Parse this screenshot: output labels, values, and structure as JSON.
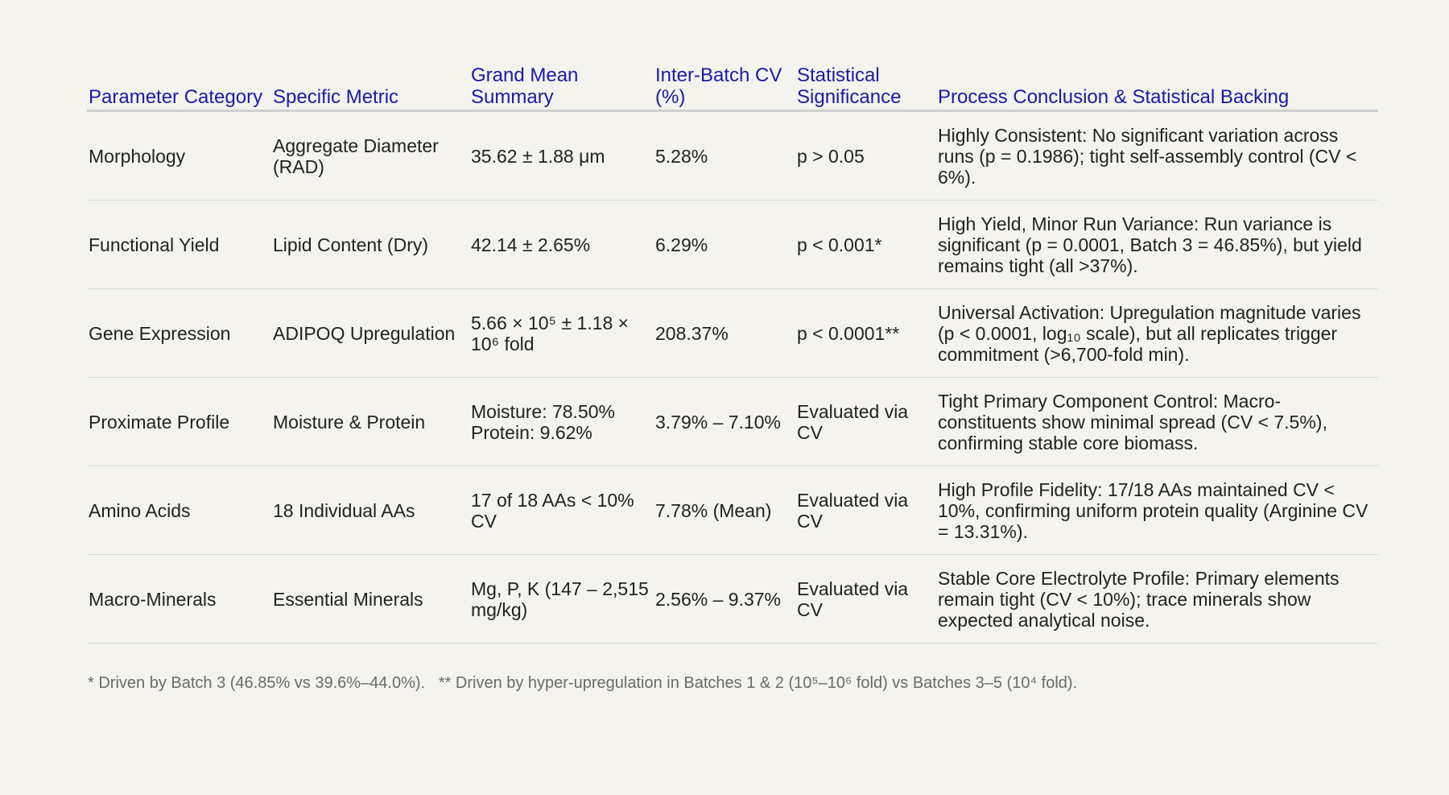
{
  "headers": [
    "Parameter Category",
    "Specific Metric",
    "Grand Mean Summary",
    "Inter-Batch CV (%)",
    "Statistical Significance",
    "Process Conclusion & Statistical Backing"
  ],
  "rows": [
    {
      "category": "Morphology",
      "metric": "Aggregate Diameter (RAD)",
      "mean": "35.62 ± 1.88 μm",
      "cv": "5.28%",
      "significance": "p > 0.05",
      "conclusion": "Highly Consistent: No significant variation across runs (p = 0.1986); tight self-assembly control (CV < 6%)."
    },
    {
      "category": "Functional Yield",
      "metric": "Lipid Content (Dry)",
      "mean": "42.14 ± 2.65%",
      "cv": "6.29%",
      "significance": "p < 0.001*",
      "conclusion": "High Yield, Minor Run Variance: Run variance is significant (p = 0.0001, Batch 3 = 46.85%), but yield remains tight (all >37%)."
    },
    {
      "category": "Gene Expression",
      "metric": "ADIPOQ Upregulation",
      "mean": "5.66 × 10⁵ ± 1.18 × 10⁶ fold",
      "cv": "208.37%",
      "significance": "p < 0.0001**",
      "conclusion": "Universal Activation: Upregulation magnitude varies (p < 0.0001, log₁₀ scale), but all replicates trigger commitment (>6,700-fold min)."
    },
    {
      "category": "Proximate Profile",
      "metric": "Moisture & Protein",
      "mean": "Moisture: 78.50% Protein: 9.62%",
      "cv": "3.79% – 7.10%",
      "significance": "Evaluated via CV",
      "conclusion": "Tight Primary Component Control: Macro-constituents show minimal spread (CV < 7.5%), confirming stable core biomass."
    },
    {
      "category": "Amino Acids",
      "metric": "18 Individual AAs",
      "mean": "17 of 18 AAs < 10% CV",
      "cv": "7.78% (Mean)",
      "significance": "Evaluated via CV",
      "conclusion": "High Profile Fidelity: 17/18 AAs maintained CV < 10%, confirming uniform protein quality (Arginine CV = 13.31%)."
    },
    {
      "category": "Macro-Minerals",
      "metric": "Essential Minerals",
      "mean": "Mg, P, K (147 – 2,515 mg/kg)",
      "cv": "2.56% – 9.37%",
      "significance": "Evaluated via CV",
      "conclusion": "Stable Core Electrolyte Profile: Primary elements remain tight (CV < 10%); trace minerals show expected analytical noise."
    }
  ],
  "footnote": "* Driven by Batch 3 (46.85% vs 39.6%–44.0%).   ** Driven by hyper-upregulation in Batches 1 & 2 (10⁵–10⁶ fold) vs Batches 3–5 (10⁴ fold).",
  "colors": {
    "header_text": "#1a1aa6",
    "body_text": "#222222",
    "background": "#f4f3ee",
    "footnote_text": "#6a6a6a"
  }
}
